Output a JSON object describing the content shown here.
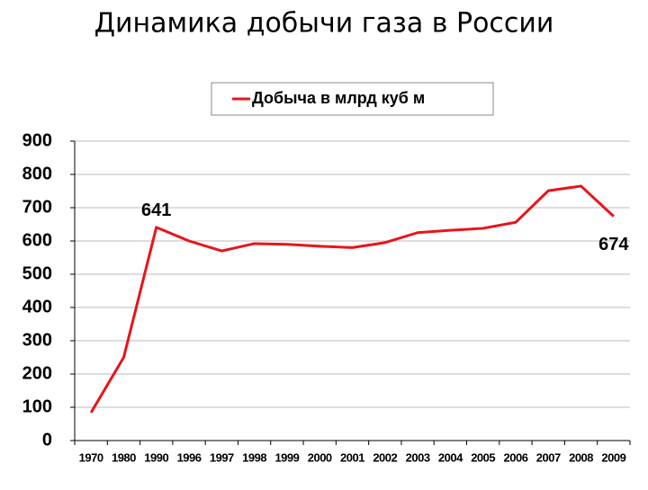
{
  "chart_data": {
    "type": "line",
    "title": "Динамика добычи газа в России",
    "categories": [
      "1970",
      "1980",
      "1990",
      "1996",
      "1997",
      "1998",
      "1999",
      "2000",
      "2001",
      "2002",
      "2003",
      "2004",
      "2005",
      "2006",
      "2007",
      "2008",
      "2009"
    ],
    "series": [
      {
        "name": "Добыча в млрд куб м",
        "color": "#e8141b",
        "values": [
          84,
          250,
          641,
          600,
          570,
          592,
          590,
          584,
          580,
          595,
          625,
          632,
          638,
          656,
          751,
          765,
          674
        ],
        "value_labels": [
          null,
          null,
          "641",
          null,
          null,
          null,
          null,
          null,
          null,
          null,
          null,
          null,
          null,
          null,
          null,
          null,
          "674"
        ]
      }
    ],
    "ylim": [
      0,
      900
    ],
    "yticks": [
      0,
      100,
      200,
      300,
      400,
      500,
      600,
      700,
      800,
      900
    ],
    "grid": true,
    "legend": "top"
  }
}
